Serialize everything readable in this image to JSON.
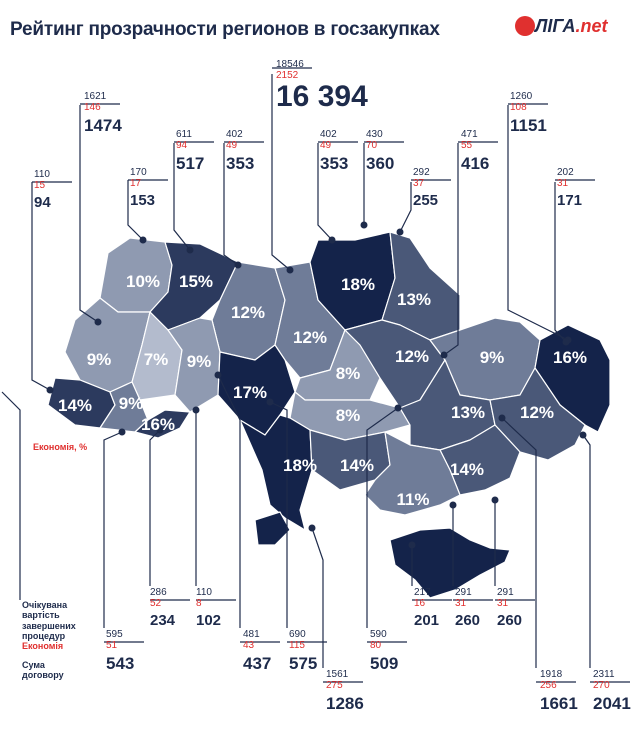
{
  "title": "Рейтинг прозрачности регионов в госзакупках",
  "logo": {
    "main": "ЛIГА",
    "suffix": ".net"
  },
  "legend": {
    "expected": [
      "Очікувана",
      "вартість",
      "завершених",
      "процедур"
    ],
    "economy": "Економія",
    "sum": [
      "Сума",
      "договору"
    ],
    "economy_pct": "Економія, %"
  },
  "colors": {
    "darkest": "#14234a",
    "dark": "#2c3a5e",
    "mid": "#4a5878",
    "light": "#6f7c98",
    "lighter": "#8f9ab1",
    "lightest": "#b3bbcd"
  },
  "regions": [
    {
      "pct": "10%"
    },
    {
      "pct": "15%"
    },
    {
      "pct": "12%"
    },
    {
      "pct": "12%"
    },
    {
      "pct": "18%"
    },
    {
      "pct": "13%"
    },
    {
      "pct": "9%"
    },
    {
      "pct": "7%"
    },
    {
      "pct": "9%"
    },
    {
      "pct": "8%"
    },
    {
      "pct": "12%"
    },
    {
      "pct": "9%"
    },
    {
      "pct": "16%"
    },
    {
      "pct": "14%"
    },
    {
      "pct": "9%"
    },
    {
      "pct": "16%"
    },
    {
      "pct": "17%"
    },
    {
      "pct": "8%"
    },
    {
      "pct": "13%"
    },
    {
      "pct": "12%"
    },
    {
      "pct": "18%"
    },
    {
      "pct": "14%"
    },
    {
      "pct": "14%"
    },
    {
      "pct": "11%"
    }
  ],
  "callouts": [
    {
      "e": "110",
      "s": "15",
      "f": "94"
    },
    {
      "e": "1621",
      "s": "146",
      "f": "1474"
    },
    {
      "e": "170",
      "s": "17",
      "f": "153"
    },
    {
      "e": "611",
      "s": "94",
      "f": "517"
    },
    {
      "e": "402",
      "s": "49",
      "f": "353"
    },
    {
      "e": "18546",
      "s": "2152",
      "f": "16 394"
    },
    {
      "e": "402",
      "s": "49",
      "f": "353"
    },
    {
      "e": "430",
      "s": "70",
      "f": "360"
    },
    {
      "e": "292",
      "s": "37",
      "f": "255"
    },
    {
      "e": "471",
      "s": "55",
      "f": "416"
    },
    {
      "e": "1260",
      "s": "108",
      "f": "1151"
    },
    {
      "e": "202",
      "s": "31",
      "f": "171"
    },
    {
      "e": "595",
      "s": "51",
      "f": "543"
    },
    {
      "e": "286",
      "s": "52",
      "f": "234"
    },
    {
      "e": "110",
      "s": "8",
      "f": "102"
    },
    {
      "e": "481",
      "s": "43",
      "f": "437"
    },
    {
      "e": "690",
      "s": "115",
      "f": "575"
    },
    {
      "e": "1561",
      "s": "275",
      "f": "1286"
    },
    {
      "e": "590",
      "s": "80",
      "f": "509"
    },
    {
      "e": "217",
      "s": "16",
      "f": "201"
    },
    {
      "e": "291",
      "s": "31",
      "f": "260"
    },
    {
      "e": "291",
      "s": "31",
      "f": "260"
    },
    {
      "e": "1918",
      "s": "256",
      "f": "1661"
    },
    {
      "e": "2311",
      "s": "270",
      "f": "2041"
    }
  ]
}
